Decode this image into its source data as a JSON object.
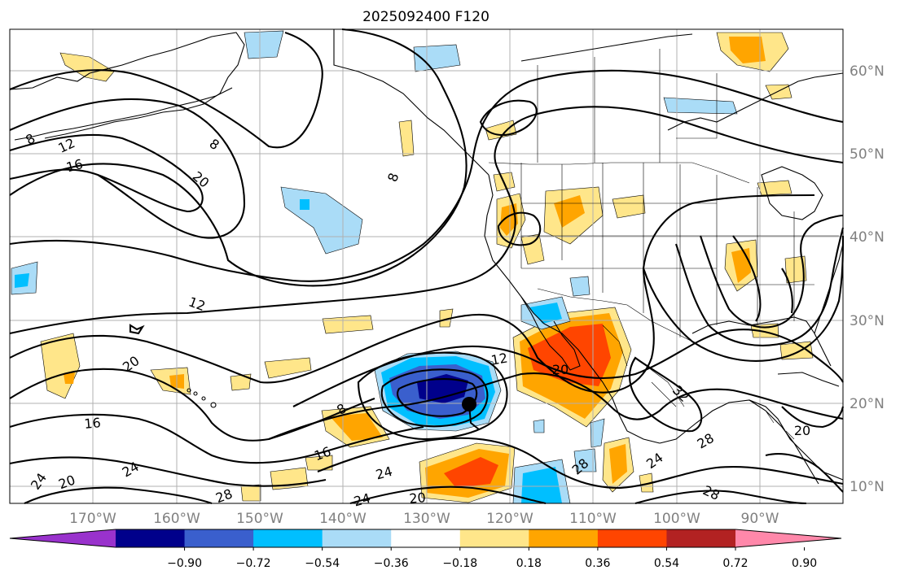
{
  "title": "2025092400 F120",
  "lat_labels": [
    "60°N",
    "50°N",
    "40°N",
    "30°N",
    "20°N",
    "10°N"
  ],
  "lon_labels": [
    "170°W",
    "160°W",
    "150°W",
    "140°W",
    "130°W",
    "120°W",
    "110°W",
    "100°W",
    "90°W"
  ],
  "colorbar": {
    "tick_labels": [
      "−0.90",
      "−0.72",
      "−0.54",
      "−0.36",
      "−0.18",
      "0.18",
      "0.36",
      "0.54",
      "0.72",
      "0.90"
    ],
    "colors": [
      "#9932cc",
      "#00008b",
      "#3a5fcd",
      "#00bfff",
      "#aadcf7",
      "#ffffff",
      "#ffe68a",
      "#ffa500",
      "#ff4500",
      "#b22222",
      "#ff88aa"
    ]
  },
  "contour_labels": [
    "12",
    "16",
    "8",
    "20",
    "8",
    "12",
    "20",
    "16",
    "24",
    "20",
    "24",
    "28",
    "24",
    "16",
    "24",
    "20",
    "8",
    "12",
    "20",
    "32",
    "28",
    "20",
    "28",
    "24",
    "28",
    "8"
  ],
  "map": {
    "coastline_color": "#000000",
    "border_color": "#000000",
    "contour_color": "#000000",
    "grid_color": "#b0b0b0",
    "marker": "black-dot"
  }
}
